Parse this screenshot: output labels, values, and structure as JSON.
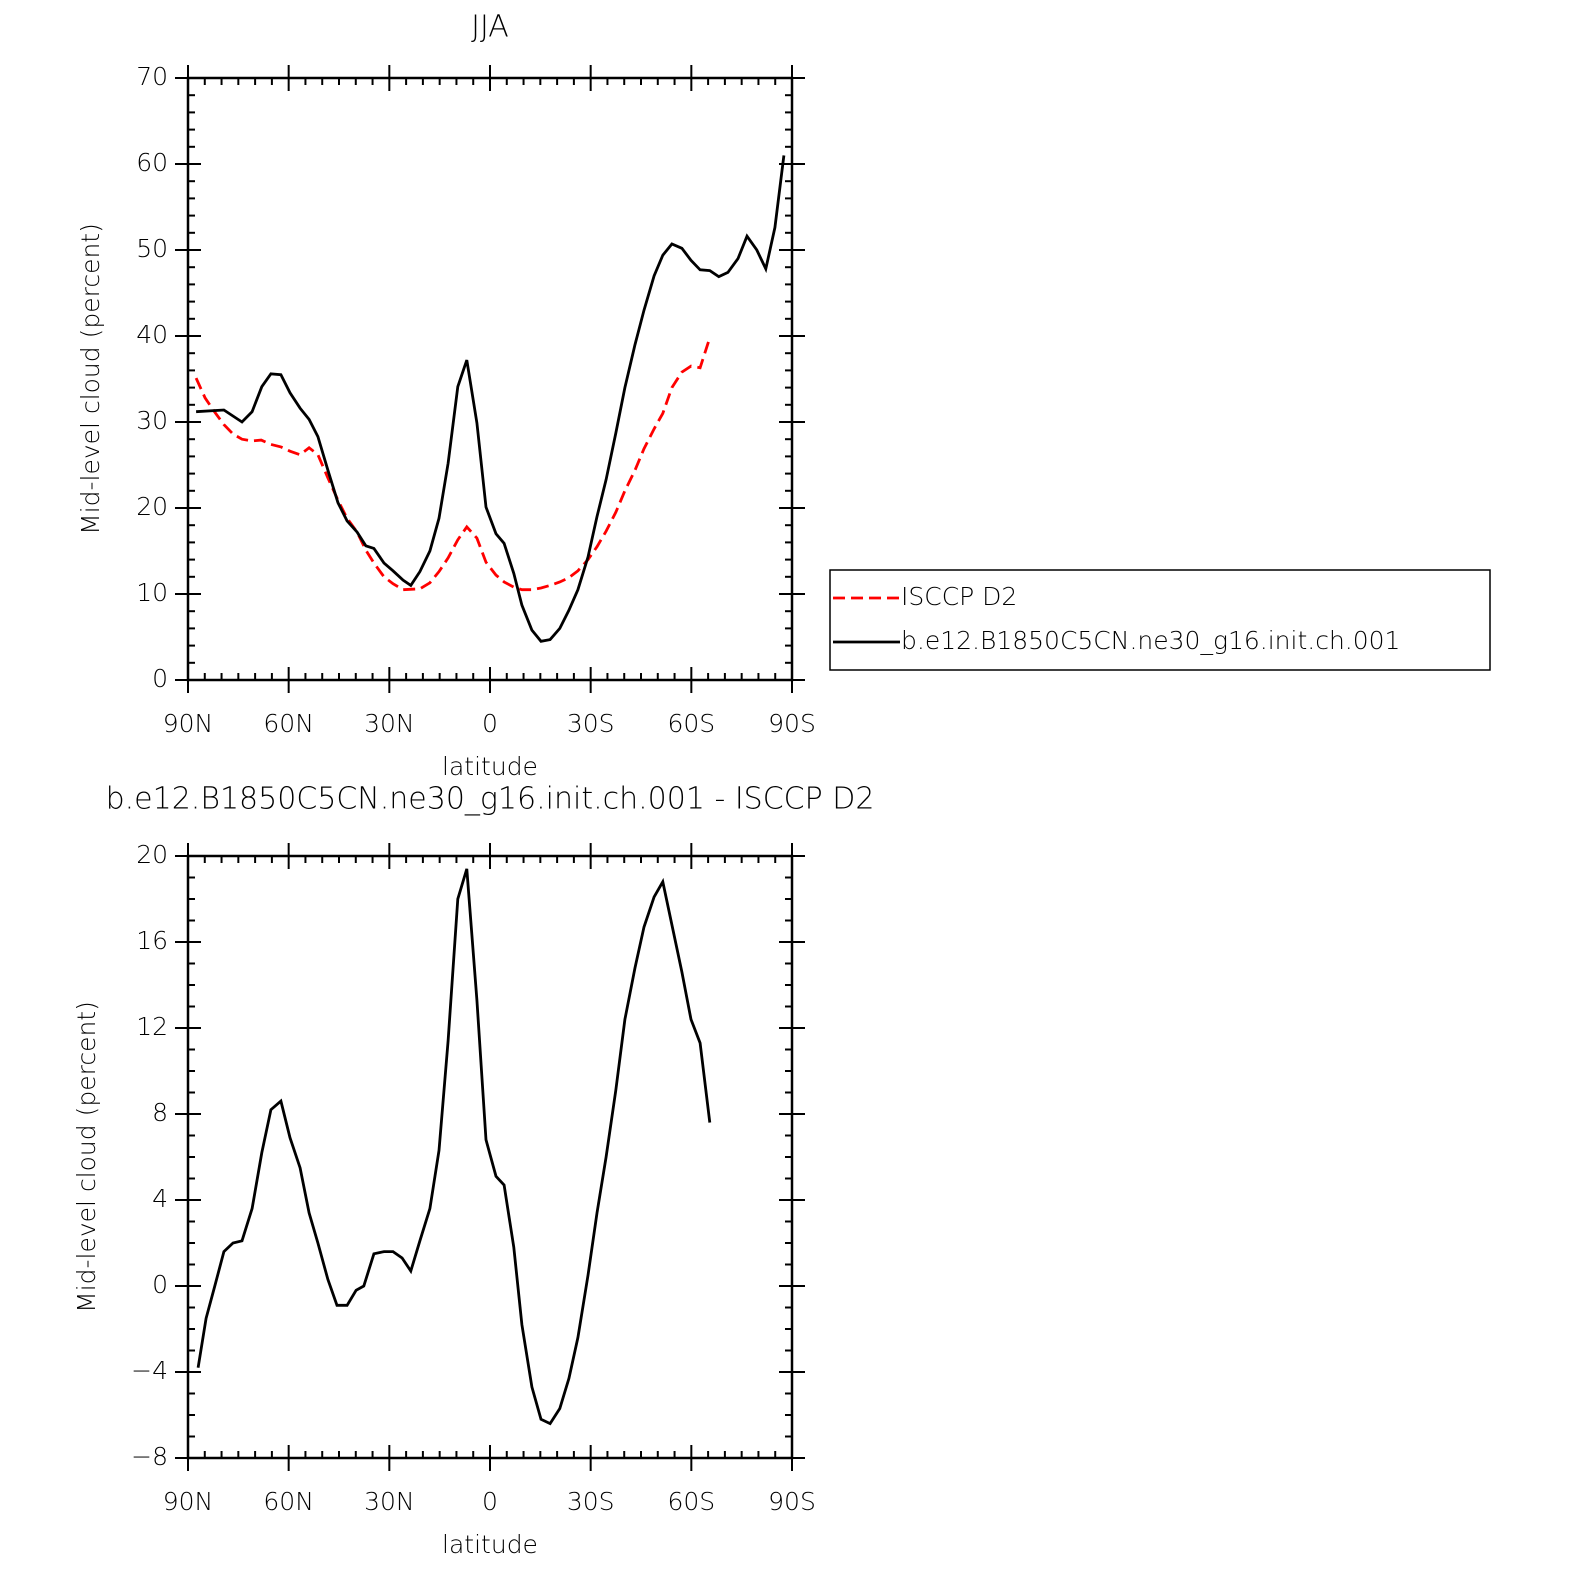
{
  "chart_data": [
    {
      "type": "line",
      "title": "JJA",
      "xlabel": "latitude",
      "ylabel": "Mid-level cloud (percent)",
      "xlim": [
        90,
        -90
      ],
      "ylim": [
        0,
        70
      ],
      "xticks": [
        {
          "value": 90,
          "label": "90N"
        },
        {
          "value": 60,
          "label": "60N"
        },
        {
          "value": 30,
          "label": "30N"
        },
        0,
        {
          "value": -30,
          "label": "30S"
        },
        {
          "value": -60,
          "label": "60S"
        },
        {
          "value": -90,
          "label": "90S"
        }
      ],
      "yticks": [
        0,
        10,
        20,
        30,
        40,
        50,
        60,
        70
      ],
      "legend": "right",
      "series": [
        {
          "name": "ISCCP D2",
          "color": "#ff0000",
          "linestyle": "dashed",
          "x": [
            87.6,
            84.9,
            82.3,
            79.3,
            76.6,
            73.9,
            70.9,
            68.2,
            65.3,
            62.3,
            59.6,
            56.6,
            53.9,
            51.3,
            48.3,
            45.3,
            42.6,
            39.6,
            37,
            34.6,
            31.6,
            28.9,
            25.9,
            20.9,
            17.9,
            15.2,
            12.5,
            9.6,
            6.9,
            3.9,
            1.2,
            -1.8,
            -4.2,
            -7.1,
            -9.5,
            -12.5,
            -15.2,
            -17.9,
            -20.8,
            -23.5,
            -26.2,
            -29.2,
            -31.9,
            -34.6,
            -37.5,
            -40.2,
            -43.2,
            -45.9,
            -48.9,
            -51.5,
            -54.2,
            -57.2,
            -59.9,
            -62.6,
            -65.5
          ],
          "values": [
            35.1,
            32.8,
            31.3,
            29.7,
            28.6,
            28.0,
            27.8,
            27.9,
            27.4,
            27.1,
            26.6,
            26.2,
            27.0,
            26.2,
            23.5,
            20.9,
            18.8,
            17.2,
            15.1,
            13.6,
            12.0,
            11.2,
            10.5,
            10.6,
            11.3,
            12.6,
            14.2,
            16.3,
            17.8,
            16.5,
            13.7,
            12.2,
            11.4,
            10.8,
            10.5,
            10.5,
            10.7,
            11.0,
            11.4,
            11.9,
            12.7,
            14.0,
            15.5,
            17.3,
            19.5,
            22.0,
            24.4,
            26.9,
            29.2,
            31.0,
            34.0,
            35.8,
            36.5,
            36.3,
            39.8
          ]
        },
        {
          "name": "b.e12.B1850C5CN.ne30_g16.init.ch.001",
          "color": "#000000",
          "linestyle": "solid",
          "x": [
            87.6,
            79.3,
            73.9,
            70.9,
            68,
            65.3,
            62.3,
            59.6,
            56.6,
            53.9,
            51.3,
            48.3,
            45.3,
            42.6,
            39.6,
            37,
            34.6,
            31.6,
            28.9,
            25.9,
            23.6,
            20.9,
            17.9,
            15.2,
            12.5,
            9.6,
            6.9,
            3.9,
            1.2,
            -1.8,
            -4.2,
            -7.1,
            -9.5,
            -12.5,
            -15.2,
            -17.9,
            -20.8,
            -23.5,
            -26.2,
            -29.2,
            -31.9,
            -34.6,
            -37.5,
            -40.2,
            -43.2,
            -45.9,
            -48.9,
            -51.5,
            -54.2,
            -57.2,
            -59.9,
            -62.6,
            -65.5,
            -68.2,
            -70.9,
            -73.9,
            -76.6,
            -79.5,
            -82.2,
            -84.9,
            -87.6
          ],
          "values": [
            31.2,
            31.4,
            30.0,
            31.2,
            34.1,
            35.6,
            35.5,
            33.4,
            31.6,
            30.3,
            28.3,
            24.4,
            20.6,
            18.5,
            17.2,
            15.6,
            15.3,
            13.6,
            12.7,
            11.6,
            11.0,
            12.6,
            15.0,
            18.8,
            25.2,
            34.1,
            37.2,
            29.9,
            20.1,
            17.0,
            15.9,
            12.4,
            8.7,
            5.8,
            4.5,
            4.7,
            6.0,
            8.1,
            10.5,
            14.3,
            19.0,
            23.3,
            28.7,
            34.0,
            39.0,
            43.0,
            47.0,
            49.4,
            50.7,
            50.2,
            48.8,
            47.7,
            47.6,
            46.9,
            47.4,
            49.0,
            51.6,
            50.0,
            47.8,
            52.6,
            61.0
          ]
        }
      ]
    },
    {
      "type": "line",
      "title": "b.e12.B1850C5CN.ne30_g16.init.ch.001 - ISCCP D2",
      "xlabel": "latitude",
      "ylabel": "Mid-level cloud (percent)",
      "xlim": [
        90,
        -90
      ],
      "ylim": [
        -8,
        20
      ],
      "xticks": [
        {
          "value": 90,
          "label": "90N"
        },
        {
          "value": 60,
          "label": "60N"
        },
        {
          "value": 30,
          "label": "30N"
        },
        0,
        {
          "value": -30,
          "label": "30S"
        },
        {
          "value": -60,
          "label": "60S"
        },
        {
          "value": -90,
          "label": "90S"
        }
      ],
      "yticks": [
        {
          "value": -8,
          "label": "−8"
        },
        {
          "value": -4,
          "label": "−4"
        },
        0,
        4,
        8,
        12,
        16,
        20
      ],
      "series": [
        {
          "color": "#000000",
          "linestyle": "solid",
          "x": [
            87,
            84.6,
            82,
            79.3,
            76.6,
            73.9,
            70.9,
            68,
            65.3,
            62.3,
            59.6,
            56.6,
            53.9,
            51.3,
            48.3,
            45.6,
            42.6,
            39.9,
            37.6,
            34.6,
            31.6,
            28.9,
            26.2,
            23.6,
            20.9,
            17.9,
            15.2,
            12.5,
            9.6,
            6.9,
            3.9,
            1.2,
            -1.8,
            -4.2,
            -7.1,
            -9.5,
            -12.5,
            -15.2,
            -17.9,
            -20.8,
            -23.5,
            -26.2,
            -29.2,
            -31.9,
            -34.6,
            -37.5,
            -40.2,
            -43.2,
            -45.9,
            -48.9,
            -51.5,
            -54.2,
            -57.2,
            -59.9,
            -62.6,
            -65.5
          ],
          "values": [
            -3.8,
            -1.5,
            0.0,
            1.6,
            2.0,
            2.1,
            3.6,
            6.2,
            8.2,
            8.6,
            6.9,
            5.5,
            3.4,
            2.0,
            0.3,
            -0.9,
            -0.9,
            -0.2,
            0.0,
            1.5,
            1.6,
            1.6,
            1.3,
            0.7,
            2.1,
            3.6,
            6.3,
            11.4,
            18.0,
            19.4,
            13.3,
            6.8,
            5.1,
            4.7,
            1.8,
            -1.8,
            -4.7,
            -6.2,
            -6.4,
            -5.7,
            -4.3,
            -2.4,
            0.5,
            3.4,
            6.0,
            9.1,
            12.4,
            14.8,
            16.7,
            18.1,
            18.8,
            16.8,
            14.6,
            12.4,
            11.3,
            7.6
          ]
        }
      ]
    }
  ]
}
